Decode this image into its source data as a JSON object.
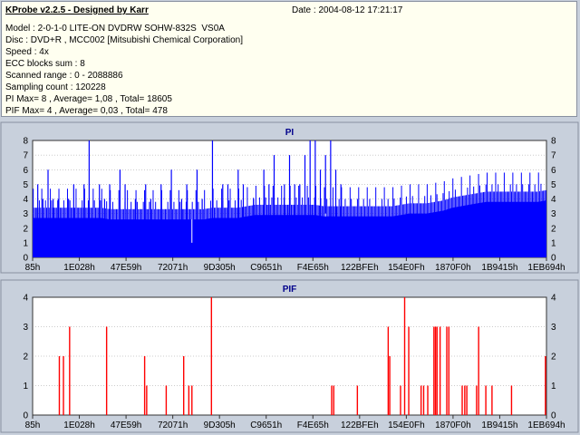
{
  "header": {
    "title": "KProbe v2.2.5 - Designed by Karr",
    "date": "Date : 2004-08-12 17:21:17",
    "lines": [
      "Model : 2-0-1-0 LITE-ON DVDRW SOHW-832S  VS0A",
      "Disc : DVD+R , MCC002 [Mitsubishi Chemical Corporation]",
      "Speed : 4x",
      "ECC blocks sum : 8",
      "Scanned range : 0 - 2088886",
      "Sampling count : 120228",
      "PI Max= 8 , Average= 1,08 , Total= 18605",
      "PIF Max= 4 , Average= 0,03 , Total= 478"
    ]
  },
  "colors": {
    "pi": "#0000ff",
    "pif": "#ff0000",
    "plot_bg": "#ffffff",
    "page_bg": "#c8d0dc",
    "title": "#00008b"
  },
  "chart_data": [
    {
      "type": "area",
      "title": "PI",
      "ylim": [
        0,
        8
      ],
      "yticks": [
        0,
        1,
        2,
        3,
        4,
        5,
        6,
        7,
        8
      ],
      "grid": true,
      "xticks": [
        "85h",
        "1E028h",
        "47E59h",
        "72071h",
        "9D305h",
        "C9651h",
        "F4E65h",
        "122BFEh",
        "154E0Fh",
        "1870F0h",
        "1B9415h",
        "1EB694h"
      ],
      "base": [
        2.7,
        2.7,
        2.7,
        2.7,
        2.7,
        2.7,
        2.7,
        2.7,
        2.7,
        2.6,
        2.6,
        2.6,
        2.6,
        2.6,
        2.6,
        2.6,
        2.6,
        2.6,
        2.6,
        2.6,
        2.6,
        2.7,
        2.7,
        2.7,
        2.7,
        2.8,
        2.9,
        2.9,
        2.9,
        2.9,
        2.9,
        2.9,
        2.9,
        2.9,
        2.8,
        2.8,
        2.8,
        2.8,
        2.8,
        2.8,
        2.8,
        2.8,
        2.8,
        2.9,
        3.0,
        3.0,
        3.0,
        3.1,
        3.2,
        3.4,
        3.5,
        3.6,
        3.7,
        3.8,
        3.8,
        3.8,
        3.8,
        3.8,
        3.8,
        3.8,
        3.9
      ],
      "spikes": [
        [
          1,
          5
        ],
        [
          2,
          4
        ],
        [
          3,
          6
        ],
        [
          4,
          4
        ],
        [
          5,
          4
        ],
        [
          7,
          4
        ],
        [
          8,
          5
        ],
        [
          10,
          5
        ],
        [
          11,
          8
        ],
        [
          13,
          5
        ],
        [
          14,
          4
        ],
        [
          15,
          5
        ],
        [
          17,
          6
        ],
        [
          18,
          5
        ],
        [
          20,
          4
        ],
        [
          22,
          5
        ],
        [
          23,
          4
        ],
        [
          25,
          5
        ],
        [
          27,
          6
        ],
        [
          29,
          4
        ],
        [
          30,
          5
        ],
        [
          32,
          6
        ],
        [
          33,
          4
        ],
        [
          35,
          8
        ],
        [
          37,
          5
        ],
        [
          38,
          5
        ],
        [
          40,
          6
        ],
        [
          41,
          5
        ],
        [
          43,
          4
        ],
        [
          45,
          6
        ],
        [
          46,
          5
        ],
        [
          47,
          7
        ],
        [
          49,
          5
        ],
        [
          50,
          7
        ],
        [
          51,
          5
        ],
        [
          52,
          5
        ],
        [
          53,
          7
        ],
        [
          54,
          8
        ],
        [
          55,
          8
        ],
        [
          56,
          6
        ],
        [
          57,
          7
        ],
        [
          58,
          8
        ],
        [
          59,
          6
        ],
        [
          60,
          5
        ]
      ],
      "dips": [
        [
          31,
          1
        ],
        [
          57,
          3
        ]
      ]
    },
    {
      "type": "bar",
      "title": "PIF",
      "ylim": [
        0,
        4
      ],
      "yticks": [
        0,
        1,
        2,
        3,
        4
      ],
      "grid": true,
      "xticks": [
        "85h",
        "1E028h",
        "47E59h",
        "72071h",
        "9D305h",
        "C9651h",
        "F4E65h",
        "122BFEh",
        "154E0Fh",
        "1870F0h",
        "1B9415h",
        "1EB694h"
      ],
      "values": [
        [
          5.2,
          2
        ],
        [
          6.0,
          2
        ],
        [
          7.2,
          3
        ],
        [
          14.4,
          3
        ],
        [
          21.8,
          2
        ],
        [
          22.2,
          1
        ],
        [
          26.0,
          1
        ],
        [
          29.4,
          2
        ],
        [
          30.4,
          1
        ],
        [
          31.0,
          1
        ],
        [
          34.8,
          4
        ],
        [
          58.2,
          1
        ],
        [
          58.6,
          1
        ],
        [
          63.2,
          1
        ],
        [
          69.2,
          3
        ],
        [
          69.5,
          2
        ],
        [
          71.6,
          1
        ],
        [
          72.4,
          4
        ],
        [
          73.2,
          3
        ],
        [
          75.6,
          1
        ],
        [
          76.1,
          1
        ],
        [
          76.9,
          1
        ],
        [
          78.1,
          3
        ],
        [
          78.4,
          3
        ],
        [
          78.7,
          3
        ],
        [
          79.3,
          3
        ],
        [
          80.6,
          3
        ],
        [
          81.0,
          3
        ],
        [
          83.6,
          1
        ],
        [
          84.1,
          1
        ],
        [
          84.5,
          1
        ],
        [
          86.4,
          1
        ],
        [
          86.8,
          3
        ],
        [
          88.2,
          1
        ],
        [
          89.4,
          1
        ],
        [
          93.2,
          1
        ],
        [
          99.8,
          2
        ]
      ]
    }
  ]
}
